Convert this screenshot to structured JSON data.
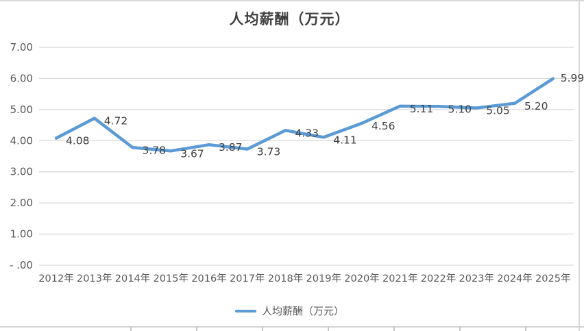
{
  "title": "人均薪酬（万元）",
  "legend": {
    "label": "人均薪酬（万元）"
  },
  "colors": {
    "line": "#5b9bd5",
    "grid": "#d9d9d9",
    "axis_text": "#595959",
    "data_label_text": "#404040",
    "title_text": "#404040",
    "sheet_line": "#d5d3d3"
  },
  "chart_data": {
    "type": "line",
    "title": "人均薪酬（万元）",
    "categories": [
      "2012年",
      "2013年",
      "2014年",
      "2015年",
      "2016年",
      "2017年",
      "2018年",
      "2019年",
      "2020年",
      "2021年",
      "2022年",
      "2023年",
      "2024年",
      "2025年"
    ],
    "series": [
      {
        "name": "人均薪酬（万元）",
        "values": [
          4.08,
          4.72,
          3.78,
          3.67,
          3.87,
          3.73,
          4.33,
          4.11,
          4.56,
          5.11,
          5.1,
          5.05,
          5.2,
          5.99
        ]
      }
    ],
    "data_labels": [
      "4.08",
      "4.72",
      "3.78",
      "3.67",
      "3.87",
      "3.73",
      "4.33",
      "4.11",
      "4.56",
      "5.11",
      "5.10",
      "5.05",
      "5.20",
      "5.99"
    ],
    "xlabel": "",
    "ylabel": "",
    "ylim": [
      0,
      7
    ],
    "ytick_step": 1,
    "ytick_labels_top_to_bottom": [
      "7.00",
      "6.00",
      "5.00",
      "4.00",
      "3.00",
      "2.00",
      "1.00",
      "- .00"
    ],
    "grid": "horizontal",
    "legend_position": "bottom",
    "data_label_position": "right"
  }
}
